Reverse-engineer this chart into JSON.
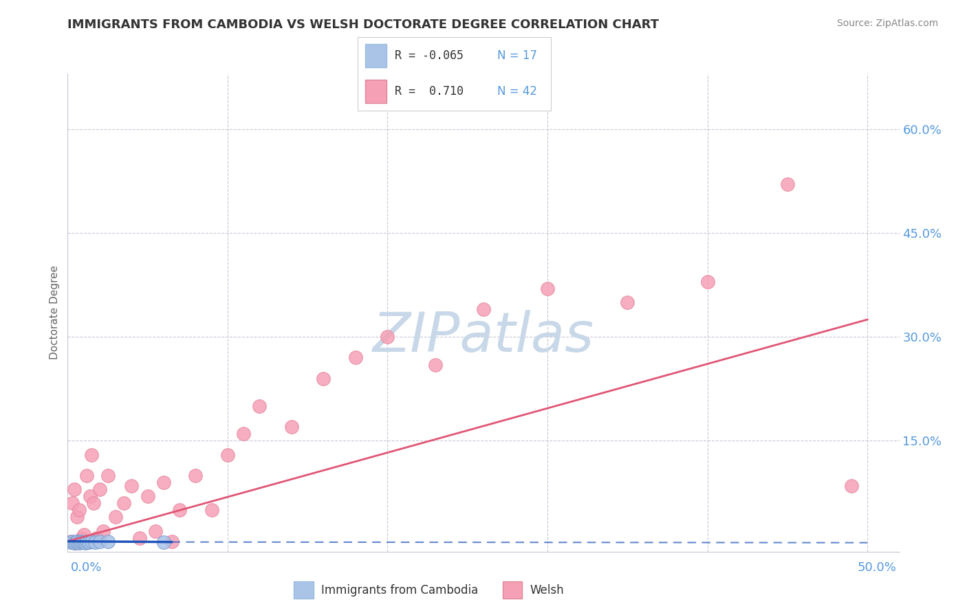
{
  "title": "IMMIGRANTS FROM CAMBODIA VS WELSH DOCTORATE DEGREE CORRELATION CHART",
  "source": "Source: ZipAtlas.com",
  "ylabel": "Doctorate Degree",
  "right_yticks": [
    "60.0%",
    "45.0%",
    "30.0%",
    "15.0%"
  ],
  "right_ytick_vals": [
    0.6,
    0.45,
    0.3,
    0.15
  ],
  "xlim": [
    0.0,
    0.52
  ],
  "ylim": [
    -0.01,
    0.68
  ],
  "blue_color": "#aac4e8",
  "pink_color": "#f5a0b5",
  "blue_line_color": "#2255bb",
  "pink_line_color": "#e05575",
  "grid_color": "#c8c8d8",
  "title_color": "#333333",
  "source_color": "#888888",
  "axis_label_color": "#5599dd",
  "watermark_color": "#c8d8e8",
  "blue_scatter_x": [
    0.002,
    0.003,
    0.004,
    0.005,
    0.006,
    0.007,
    0.008,
    0.009,
    0.01,
    0.011,
    0.012,
    0.013,
    0.015,
    0.017,
    0.02,
    0.025,
    0.06
  ],
  "blue_scatter_y": [
    0.004,
    0.005,
    0.003,
    0.004,
    0.005,
    0.003,
    0.005,
    0.004,
    0.004,
    0.003,
    0.005,
    0.004,
    0.005,
    0.004,
    0.005,
    0.005,
    0.004
  ],
  "pink_scatter_x": [
    0.002,
    0.003,
    0.004,
    0.005,
    0.006,
    0.007,
    0.008,
    0.009,
    0.01,
    0.012,
    0.014,
    0.015,
    0.016,
    0.018,
    0.02,
    0.022,
    0.025,
    0.03,
    0.035,
    0.04,
    0.045,
    0.05,
    0.055,
    0.06,
    0.065,
    0.07,
    0.08,
    0.09,
    0.1,
    0.11,
    0.12,
    0.14,
    0.16,
    0.18,
    0.2,
    0.23,
    0.26,
    0.3,
    0.35,
    0.4,
    0.45,
    0.49
  ],
  "pink_scatter_y": [
    0.005,
    0.06,
    0.08,
    0.003,
    0.04,
    0.05,
    0.008,
    0.01,
    0.015,
    0.1,
    0.07,
    0.13,
    0.06,
    0.01,
    0.08,
    0.02,
    0.1,
    0.04,
    0.06,
    0.085,
    0.01,
    0.07,
    0.02,
    0.09,
    0.005,
    0.05,
    0.1,
    0.05,
    0.13,
    0.16,
    0.2,
    0.17,
    0.24,
    0.27,
    0.3,
    0.26,
    0.34,
    0.37,
    0.35,
    0.38,
    0.52,
    0.085
  ],
  "pink_line_x0": 0.0,
  "pink_line_y0": 0.005,
  "pink_line_x1": 0.5,
  "pink_line_y1": 0.325,
  "blue_line_solid_x0": 0.0,
  "blue_line_solid_y0": 0.005,
  "blue_line_solid_x1": 0.065,
  "blue_line_solid_y1": 0.004,
  "blue_line_dash_x0": 0.065,
  "blue_line_dash_y0": 0.004,
  "blue_line_dash_x1": 0.5,
  "blue_line_dash_y1": 0.003,
  "xtick_vals": [
    0.0,
    0.1,
    0.2,
    0.3,
    0.4,
    0.5
  ],
  "xtick_labels": [
    "0.0%",
    "",
    "",
    "",
    "",
    "50.0%"
  ]
}
